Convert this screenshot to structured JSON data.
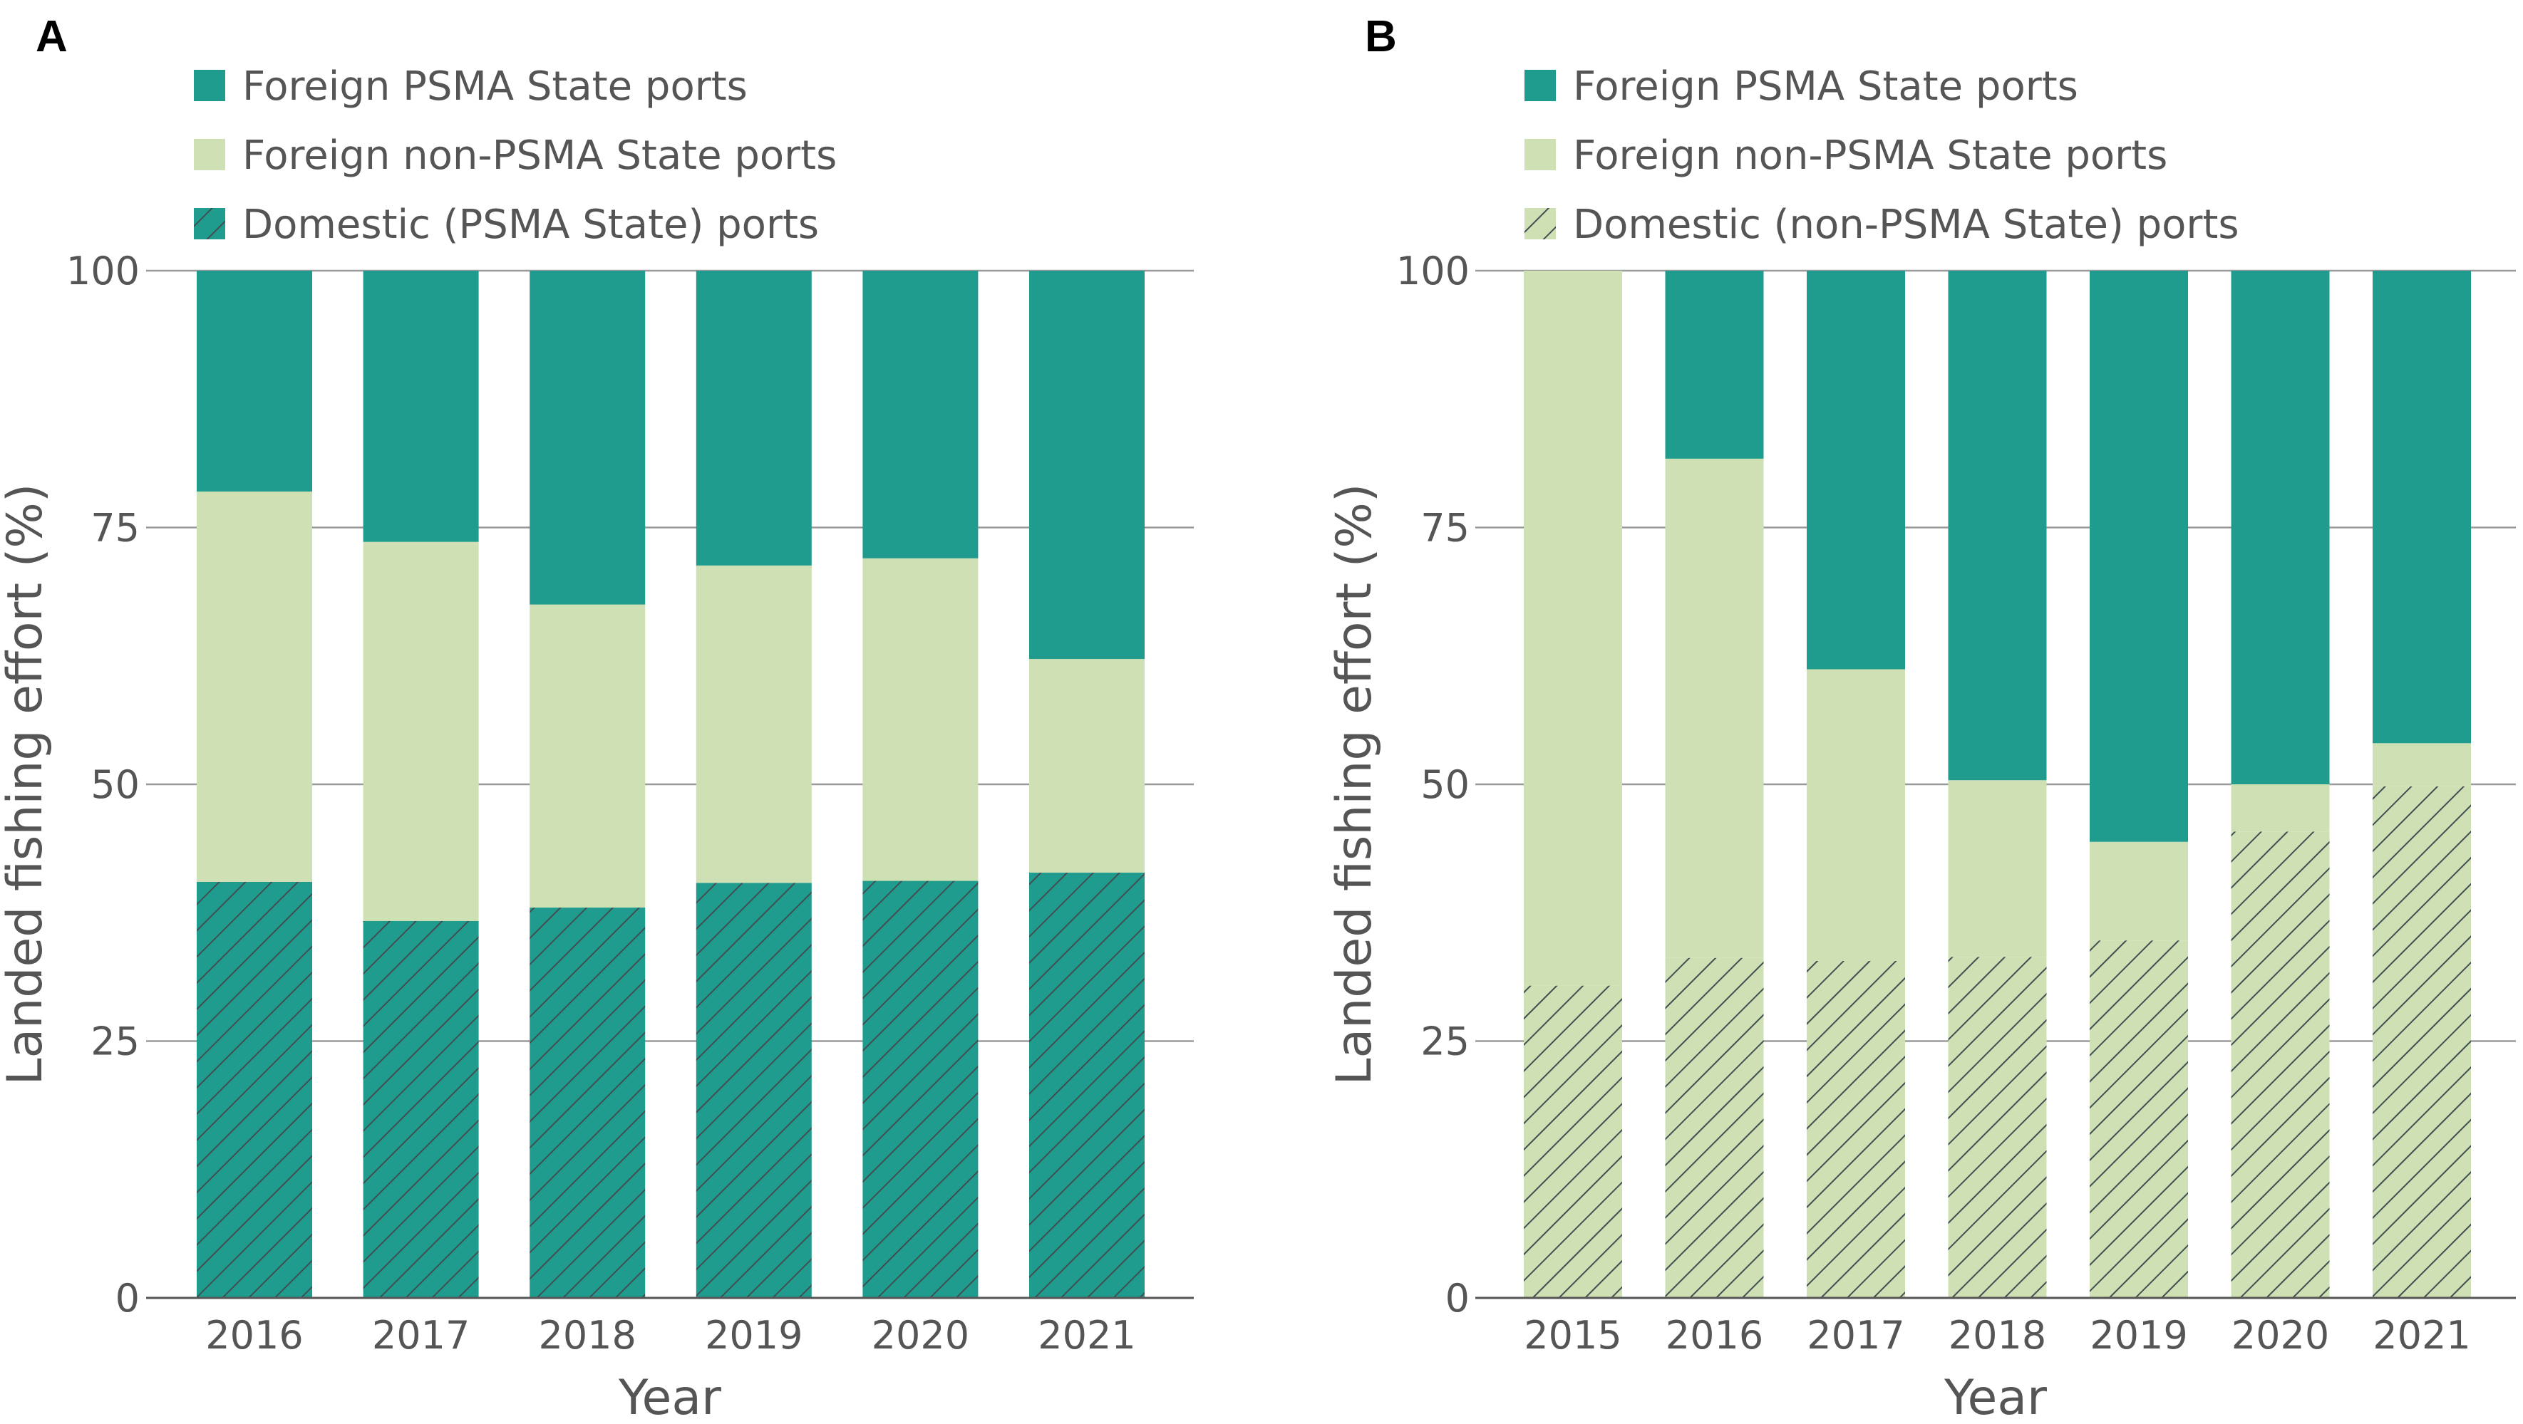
{
  "colors": {
    "foreign_psma": "#209c8e",
    "foreign_non_psma": "#cfe0b4",
    "hatch_line": "#3f4f52",
    "grid": "#9a9a9a",
    "text": "#555555"
  },
  "chart_data": [
    {
      "panel": "A",
      "type": "bar",
      "stacked": true,
      "xlabel": "Year",
      "ylabel": "Landed fishing effort (%)",
      "ylim": [
        0,
        100
      ],
      "yticks": [
        0,
        25,
        50,
        75,
        100
      ],
      "grid": true,
      "legend_position": "top-left",
      "legend": [
        {
          "label": "Foreign PSMA State ports",
          "swatch": "foreign_psma"
        },
        {
          "label": "Foreign non-PSMA State ports",
          "swatch": "foreign_non_psma"
        },
        {
          "label": "Domestic (PSMA State) ports",
          "swatch": "domestic_psma_hatched"
        }
      ],
      "categories": [
        "2016",
        "2017",
        "2018",
        "2019",
        "2020",
        "2021"
      ],
      "series": [
        {
          "name": "Domestic (PSMA State) ports",
          "fill": "domestic_psma_hatched",
          "values": [
            40.5,
            36.7,
            38.0,
            40.4,
            40.6,
            41.4
          ]
        },
        {
          "name": "Foreign non-PSMA State ports",
          "fill": "foreign_non_psma",
          "values": [
            38.0,
            36.9,
            29.5,
            30.9,
            31.4,
            20.8
          ]
        },
        {
          "name": "Foreign PSMA State ports",
          "fill": "foreign_psma",
          "values": [
            21.5,
            26.4,
            32.5,
            28.7,
            28.0,
            37.8
          ]
        }
      ]
    },
    {
      "panel": "B",
      "type": "bar",
      "stacked": true,
      "xlabel": "Year",
      "ylabel": "Landed fishing effort (%)",
      "ylim": [
        0,
        100
      ],
      "yticks": [
        0,
        25,
        50,
        75,
        100
      ],
      "grid": true,
      "legend_position": "top-left",
      "legend": [
        {
          "label": "Foreign PSMA State ports",
          "swatch": "foreign_psma"
        },
        {
          "label": "Foreign non-PSMA State ports",
          "swatch": "foreign_non_psma"
        },
        {
          "label": "Domestic (non-PSMA State) ports",
          "swatch": "domestic_non_psma_hatched"
        }
      ],
      "categories": [
        "2015",
        "2016",
        "2017",
        "2018",
        "2019",
        "2020",
        "2021"
      ],
      "series": [
        {
          "name": "Domestic (non-PSMA State) ports",
          "fill": "domestic_non_psma_hatched",
          "values": [
            30.4,
            33.1,
            32.8,
            33.2,
            34.8,
            45.4,
            49.8
          ]
        },
        {
          "name": "Foreign non-PSMA State ports",
          "fill": "foreign_non_psma",
          "values": [
            69.6,
            48.6,
            28.4,
            17.2,
            9.6,
            4.6,
            4.2
          ]
        },
        {
          "name": "Foreign PSMA State ports",
          "fill": "foreign_psma",
          "values": [
            0.0,
            18.3,
            38.8,
            49.6,
            55.6,
            50.0,
            46.0
          ]
        }
      ]
    }
  ]
}
